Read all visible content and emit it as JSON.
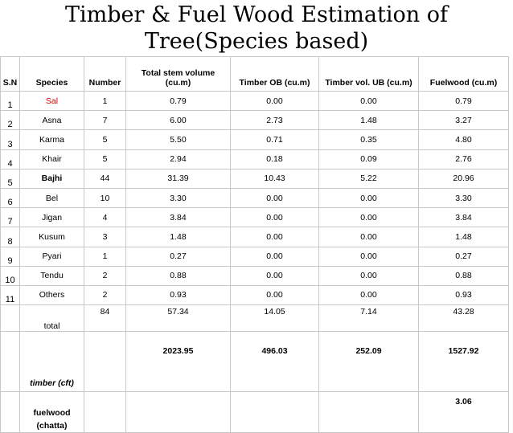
{
  "title_line1": "Timber & Fuel Wood Estimation of",
  "title_line2": "Tree(Species based)",
  "headers": [
    "S.N",
    "Species",
    "Number",
    "Total stem volume (cu.m)",
    "Timber OB (cu.m)",
    "Timber vol. UB (cu.m)",
    "Fuelwood (cu.m)"
  ],
  "rows": [
    {
      "sn": "1",
      "species": "Sal",
      "number": "1",
      "volume": "0.79",
      "timber_ob": "0.00",
      "timber_ub": "0.00",
      "fuelwood": "0.79"
    },
    {
      "sn": "2",
      "species": "Asna",
      "number": "7",
      "volume": "6.00",
      "timber_ob": "2.73",
      "timber_ub": "1.48",
      "fuelwood": "3.27"
    },
    {
      "sn": "3",
      "species": "Karma",
      "number": "5",
      "volume": "5.50",
      "timber_ob": "0.71",
      "timber_ub": "0.35",
      "fuelwood": "4.80"
    },
    {
      "sn": "4",
      "species": "Khair",
      "number": "5",
      "volume": "2.94",
      "timber_ob": "0.18",
      "timber_ub": "0.09",
      "fuelwood": "2.76"
    },
    {
      "sn": "5",
      "species": "Bajhi",
      "number": "44",
      "volume": "31.39",
      "timber_ob": "10.43",
      "timber_ub": "5.22",
      "fuelwood": "20.96"
    },
    {
      "sn": "6",
      "species": "Bel",
      "number": "10",
      "volume": "3.30",
      "timber_ob": "0.00",
      "timber_ub": "0.00",
      "fuelwood": "3.30"
    },
    {
      "sn": "7",
      "species": "Jigan",
      "number": "4",
      "volume": "3.84",
      "timber_ob": "0.00",
      "timber_ub": "0.00",
      "fuelwood": "3.84"
    },
    {
      "sn": "8",
      "species": "Kusum",
      "number": "3",
      "volume": "1.48",
      "timber_ob": "0.00",
      "timber_ub": "0.00",
      "fuelwood": "1.48"
    },
    {
      "sn": "9",
      "species": "Pyari",
      "number": "1",
      "volume": "0.27",
      "timber_ob": "0.00",
      "timber_ub": "0.00",
      "fuelwood": "0.27"
    },
    {
      "sn": "10",
      "species": "Tendu",
      "number": "2",
      "volume": "0.88",
      "timber_ob": "0.00",
      "timber_ub": "0.00",
      "fuelwood": "0.88"
    },
    {
      "sn": "11",
      "species": "Others",
      "number": "2",
      "volume": "0.93",
      "timber_ob": "0.00",
      "timber_ub": "0.00",
      "fuelwood": "0.93"
    }
  ],
  "total": {
    "label": "total",
    "number": "84",
    "volume": "57.34",
    "timber_ob": "14.05",
    "timber_ub": "7.14",
    "fuelwood": "43.28"
  },
  "timber_cft": {
    "label": "timber (cft)",
    "volume": "2023.95",
    "timber_ob": "496.03",
    "timber_ub": "252.09",
    "fuelwood": "1527.92"
  },
  "fuelwood_chatta": {
    "label": "fuelwood (chatta)",
    "fuelwood": "3.06"
  },
  "colors": {
    "highlight_species": "#e00000",
    "grid": "#c8c8c8"
  }
}
